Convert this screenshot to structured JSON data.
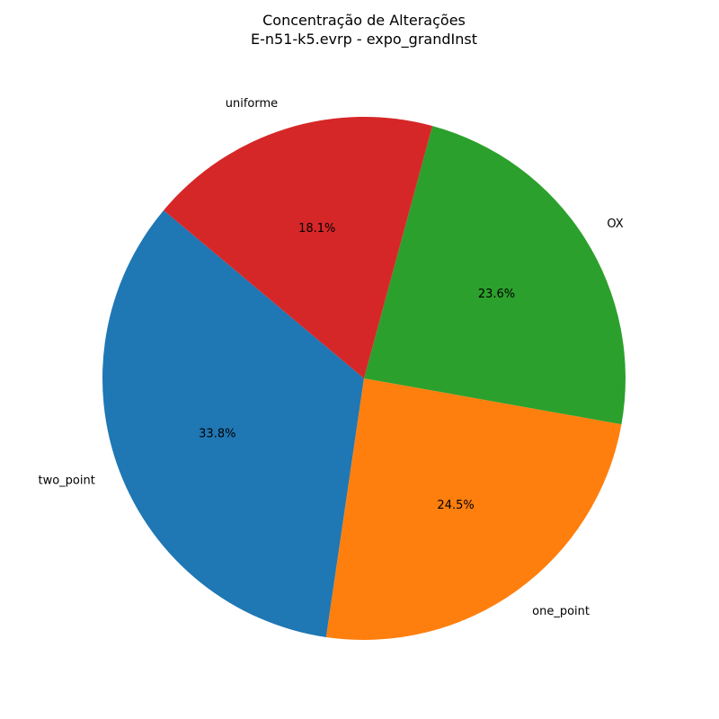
{
  "chart_data": {
    "type": "pie",
    "title": "Concentração de Alterações",
    "subtitle": "E-n51-k5.evrp - expo_grandInst",
    "categories": [
      "two_point",
      "one_point",
      "OX",
      "uniforme"
    ],
    "values": [
      33.8,
      24.5,
      23.6,
      18.1
    ],
    "value_labels": [
      "33.8%",
      "24.5%",
      "23.6%",
      "18.1%"
    ],
    "colors": [
      "#1f77b4",
      "#ff7f0e",
      "#2ca02c",
      "#d62728"
    ],
    "start_angle_deg": 140,
    "direction": "counterclockwise",
    "legend": "none"
  }
}
